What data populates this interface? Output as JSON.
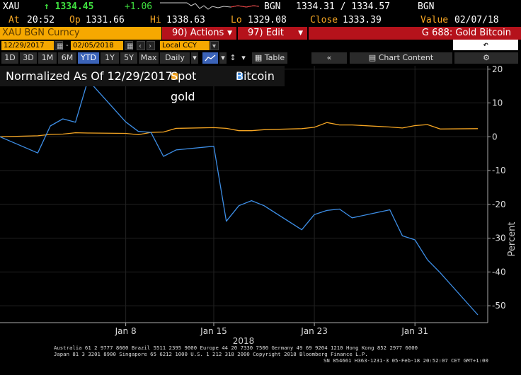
{
  "header": {
    "ticker": "XAU",
    "last_price": "↑ 1334.45",
    "change": "+1.06",
    "source": "BGN",
    "bid_ask": "1334.31 / 1334.57",
    "source2": "BGN",
    "at_label": "At",
    "at_value": "20:52",
    "open_label": "Op",
    "open_value": "1331.66",
    "high_label": "Hi",
    "high_value": "1338.63",
    "low_label": "Lo",
    "low_value": "1329.08",
    "close_label": "Close",
    "close_value": "1333.39",
    "value_label": "Value",
    "value_date": "02/07/18"
  },
  "titlebar": {
    "security": "XAU BGN Curncy",
    "actions": "90) Actions",
    "edit": "97) Edit",
    "chart_name": "G 688: Gold Bitcoin"
  },
  "datebar": {
    "start_date": "12/29/2017",
    "end_date": "02/05/2018",
    "currency": "Local CCY"
  },
  "toolbar": {
    "periods": [
      "1D",
      "3D",
      "1M",
      "6M",
      "YTD",
      "1Y",
      "5Y",
      "Max"
    ],
    "selected_period": "YTD",
    "frequency": "Daily",
    "table_label": "Table",
    "chart_content_label": "Chart Content"
  },
  "legend": {
    "title": "Normalized As Of 12/29/2017",
    "items": [
      "Spot gold",
      "Bitcoin"
    ]
  },
  "chart_data": {
    "type": "line",
    "ylabel": "Percent",
    "xlabel": "2018",
    "ylim": [
      -55,
      21
    ],
    "y_ticks": [
      20,
      10,
      0,
      -10,
      -20,
      -30,
      -40,
      -50
    ],
    "x_tick_labels": [
      "Jan 8",
      "Jan 15",
      "Jan 23",
      "Jan 31"
    ],
    "x": [
      "12/29/2017",
      "01/01/2018",
      "01/02/2018",
      "01/03/2018",
      "01/04/2018",
      "01/05/2018",
      "01/08/2018",
      "01/09/2018",
      "01/10/2018",
      "01/11/2018",
      "01/12/2018",
      "01/15/2018",
      "01/16/2018",
      "01/17/2018",
      "01/18/2018",
      "01/19/2018",
      "01/22/2018",
      "01/23/2018",
      "01/24/2018",
      "01/25/2018",
      "01/26/2018",
      "01/29/2018",
      "01/30/2018",
      "01/31/2018",
      "02/01/2018",
      "02/02/2018",
      "02/05/2018"
    ],
    "series": [
      {
        "name": "Spot gold",
        "color": "#f6a623",
        "values": [
          0.0,
          0.3,
          0.7,
          0.8,
          1.2,
          1.1,
          1.0,
          0.6,
          1.3,
          1.4,
          2.5,
          2.7,
          2.5,
          1.8,
          1.8,
          2.1,
          2.4,
          2.8,
          4.2,
          3.5,
          3.5,
          2.9,
          2.6,
          3.3,
          3.6,
          2.3,
          2.4
        ]
      },
      {
        "name": "Bitcoin",
        "color": "#3d8ee6",
        "values": [
          0.0,
          -4.8,
          3.2,
          5.3,
          4.3,
          16.8,
          4.4,
          1.6,
          1.3,
          -5.8,
          -3.9,
          -2.8,
          -25.0,
          -20.4,
          -18.9,
          -20.4,
          -27.5,
          -23.0,
          -21.8,
          -21.4,
          -24.0,
          -21.6,
          -29.3,
          -30.5,
          -36.4,
          -40.2,
          -52.7
        ]
      }
    ]
  },
  "footer": {
    "line1": "Australia 61 2 9777 8600 Brazil 5511 2395 9000 Europe 44 20 7330 7500 Germany 49 69 9204 1210 Hong Kong 852 2977 6000",
    "line2": "Japan 81 3 3201 8900        Singapore 65 6212 1000        U.S. 1 212 318 2000        Copyright 2018 Bloomberg Finance L.P.",
    "line3": "SN 854661 H363-1231-3 05-Feb-18 20:52:07 CET  GMT+1:00"
  }
}
